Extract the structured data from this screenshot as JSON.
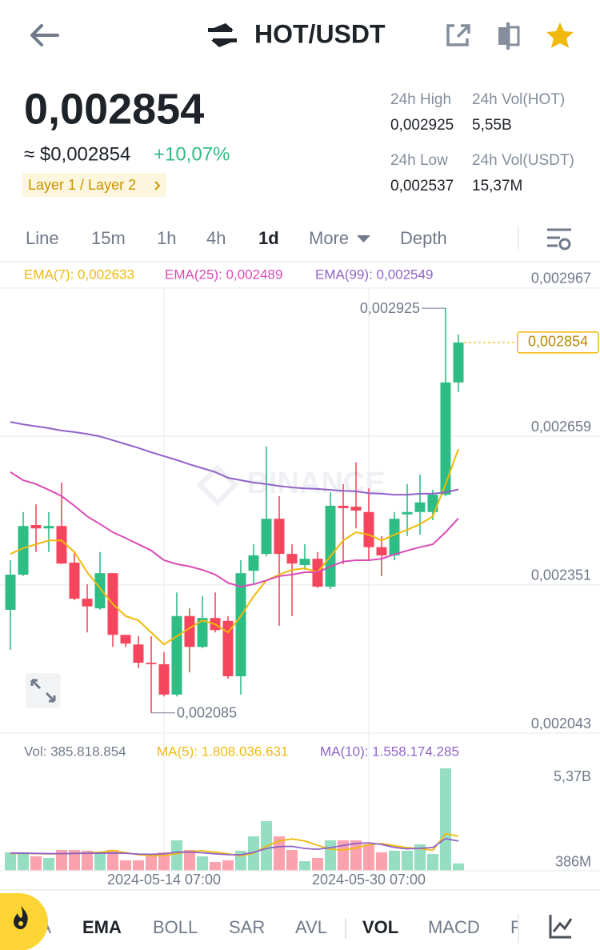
{
  "header": {
    "title": "HOT/USDT"
  },
  "price": {
    "last": "0,002854",
    "usd": "≈ $0,002854",
    "change": "+10,07%",
    "tag": "Layer 1 / Layer 2"
  },
  "stats": [
    {
      "label": "24h High",
      "value": "0,002925"
    },
    {
      "label": "24h Vol(HOT)",
      "value": "5,55B"
    },
    {
      "label": "24h Low",
      "value": "0,002537"
    },
    {
      "label": "24h Vol(USDT)",
      "value": "15,37M"
    }
  ],
  "tabs": [
    "Line",
    "15m",
    "1h",
    "4h",
    "1d",
    "More",
    "Depth"
  ],
  "indicators": [
    "MA",
    "EMA",
    "BOLL",
    "SAR",
    "AVL",
    "VOL",
    "MACD",
    "RSI"
  ],
  "chart_data": {
    "type": "candlestick",
    "watermark": "BINANCE",
    "categories": [
      null,
      null,
      null,
      null,
      null,
      null,
      null,
      null,
      null,
      null,
      null,
      null,
      "2024-05-14 07:00",
      null,
      null,
      null,
      null,
      null,
      null,
      null,
      null,
      null,
      null,
      null,
      null,
      null,
      null,
      null,
      "2024-05-30 07:00",
      null,
      null,
      null,
      null,
      null,
      null,
      null
    ],
    "open": [
      0.002299,
      0.002372,
      0.002475,
      0.002468,
      0.002473,
      0.002397,
      0.002322,
      0.002302,
      0.002375,
      0.002247,
      0.002227,
      0.002189,
      0.002186,
      0.002123,
      0.002286,
      0.002222,
      0.002282,
      0.002276,
      0.002161,
      0.00238,
      0.002415,
      0.002488,
      0.002415,
      0.002392,
      0.002405,
      0.002347,
      0.002515,
      0.002513,
      0.002502,
      0.002429,
      0.002412,
      0.002497,
      0.002502,
      0.002502,
      0.002538,
      0.002771
    ],
    "high": [
      0.002402,
      0.002502,
      0.002518,
      0.002502,
      0.002563,
      0.002419,
      0.002352,
      0.002419,
      0.002375,
      0.002247,
      0.002244,
      0.002244,
      0.002211,
      0.002335,
      0.002302,
      0.002327,
      0.002335,
      0.002286,
      0.002402,
      0.002435,
      0.002638,
      0.002535,
      0.002435,
      0.002435,
      0.002419,
      0.002543,
      0.00256,
      0.002605,
      0.002551,
      0.002452,
      0.002502,
      0.00256,
      0.00258,
      0.002548,
      0.002925,
      0.002871
    ],
    "low": [
      0.002216,
      0.002369,
      0.002419,
      0.002419,
      0.002394,
      0.002319,
      0.002252,
      0.002299,
      0.002222,
      0.002222,
      0.002178,
      0.002085,
      0.002119,
      0.002119,
      0.002169,
      0.002219,
      0.002252,
      0.002156,
      0.002123,
      0.002352,
      0.00241,
      0.002266,
      0.002286,
      0.002382,
      0.002344,
      0.002342,
      0.002394,
      0.002468,
      0.002402,
      0.002369,
      0.002402,
      0.002452,
      0.002455,
      0.002485,
      0.002535,
      0.002751
    ],
    "close": [
      0.002372,
      0.002473,
      0.002468,
      0.002473,
      0.002395,
      0.002322,
      0.002306,
      0.002375,
      0.002247,
      0.002229,
      0.002189,
      0.002186,
      0.002123,
      0.002286,
      0.002222,
      0.002282,
      0.002257,
      0.002161,
      0.002375,
      0.002412,
      0.002488,
      0.002415,
      0.002395,
      0.002405,
      0.002347,
      0.002515,
      0.00251,
      0.002505,
      0.002429,
      0.002412,
      0.002488,
      0.002502,
      0.002522,
      0.002538,
      0.002771,
      0.002854
    ],
    "up_color": "#2ebd85",
    "down_color": "#f6465d",
    "ylim": [
      0.002043,
      0.00302
    ],
    "yticks": [
      {
        "value": 0.002967,
        "label": "0,002967"
      },
      {
        "value": 0.002659,
        "label": "0,002659"
      },
      {
        "value": 0.002351,
        "label": "0,002351"
      },
      {
        "value": 0.002043,
        "label": "0,002043"
      }
    ],
    "grid": true,
    "series": [
      {
        "name": "EMA(7): 0,002633",
        "color": "#f0b90b",
        "values": [
          0.002415,
          0.002427,
          0.002435,
          0.002443,
          0.002443,
          0.002419,
          0.002377,
          0.002344,
          0.002311,
          0.002286,
          0.002277,
          0.002252,
          0.002227,
          0.002244,
          0.002261,
          0.002277,
          0.002269,
          0.002252,
          0.002286,
          0.002327,
          0.00236,
          0.002372,
          0.002382,
          0.002385,
          0.002377,
          0.00241,
          0.002443,
          0.00246,
          0.002455,
          0.002443,
          0.002455,
          0.002465,
          0.002477,
          0.002493,
          0.00256,
          0.002633
        ]
      },
      {
        "name": "EMA(25): 0,002489",
        "color": "#d94bb5",
        "values": [
          0.002585,
          0.002568,
          0.00256,
          0.002548,
          0.002535,
          0.002515,
          0.002493,
          0.002477,
          0.00246,
          0.002448,
          0.002435,
          0.002422,
          0.002402,
          0.002394,
          0.002389,
          0.002382,
          0.002372,
          0.002355,
          0.002347,
          0.002352,
          0.00236,
          0.002369,
          0.002372,
          0.002377,
          0.002377,
          0.002389,
          0.002399,
          0.002402,
          0.002402,
          0.002405,
          0.002414,
          0.002422,
          0.002429,
          0.002435,
          0.00246,
          0.002489
        ]
      },
      {
        "name": "EMA(99): 0,002549",
        "color": "#9062c8",
        "values": [
          0.002689,
          0.002684,
          0.00268,
          0.002676,
          0.002671,
          0.002668,
          0.002664,
          0.002659,
          0.002651,
          0.002643,
          0.002635,
          0.002626,
          0.002618,
          0.00261,
          0.002601,
          0.002593,
          0.002585,
          0.002573,
          0.002568,
          0.002563,
          0.00256,
          0.002556,
          0.002553,
          0.002551,
          0.00255,
          0.002548,
          0.002546,
          0.002545,
          0.002541,
          0.00254,
          0.002538,
          0.002538,
          0.00254,
          0.00254,
          0.002543,
          0.002549
        ]
      }
    ],
    "last_price": {
      "value": 0.002854,
      "label": "0,002854"
    },
    "high_marker": {
      "value": 0.002925,
      "label": "0,002925"
    },
    "low_marker": {
      "value": 0.002085,
      "label": "0,002085"
    },
    "volume": {
      "label": "Vol: 385.818.854",
      "values": [
        965000000,
        965000000,
        755000000,
        671000000,
        1091000000,
        1091000000,
        1049000000,
        965000000,
        1091000000,
        545000000,
        545000000,
        839000000,
        965000000,
        1594000000,
        1091000000,
        755000000,
        461000000,
        545000000,
        1049000000,
        1804000000,
        2601000000,
        1804000000,
        1091000000,
        503000000,
        671000000,
        1594000000,
        1594000000,
        1594000000,
        1384000000,
        965000000,
        1049000000,
        1049000000,
        1384000000,
        881000000,
        5370000000,
        385818854
      ],
      "ylim": [
        0,
        5370000000
      ],
      "yticks": [
        {
          "value": 5370000000,
          "label": "5,37B"
        },
        {
          "value": 386000000,
          "label": "386M"
        }
      ],
      "series": [
        {
          "name": "MA(5): 1.808.036.631",
          "color": "#f0b90b",
          "values": [
            900000000,
            920000000,
            900000000,
            880000000,
            889000000,
            915000000,
            931000000,
            973000000,
            1057000000,
            948000000,
            839000000,
            797000000,
            797000000,
            898000000,
            1007000000,
            1049000000,
            973000000,
            889000000,
            780000000,
            923000000,
            1292000000,
            1561000000,
            1670000000,
            1561000000,
            1334000000,
            1133000000,
            1091000000,
            1191000000,
            1367000000,
            1426000000,
            1317000000,
            1208000000,
            1166000000,
            1066000000,
            1947000000,
            1808036631
          ]
        },
        {
          "name": "MA(10): 1.558.174.285",
          "color": "#9062c8",
          "values": [
            930000000,
            920000000,
            910000000,
            900000000,
            900000000,
            910000000,
            920000000,
            920000000,
            930000000,
            919000000,
            877000000,
            864000000,
            885000000,
            978000000,
            978000000,
            944000000,
            885000000,
            843000000,
            839000000,
            965000000,
            1170000000,
            1267000000,
            1280000000,
            1170000000,
            1128000000,
            1212000000,
            1326000000,
            1431000000,
            1464000000,
            1380000000,
            1225000000,
            1149000000,
            1179000000,
            1217000000,
            1686000000,
            1558174285
          ]
        }
      ]
    }
  }
}
